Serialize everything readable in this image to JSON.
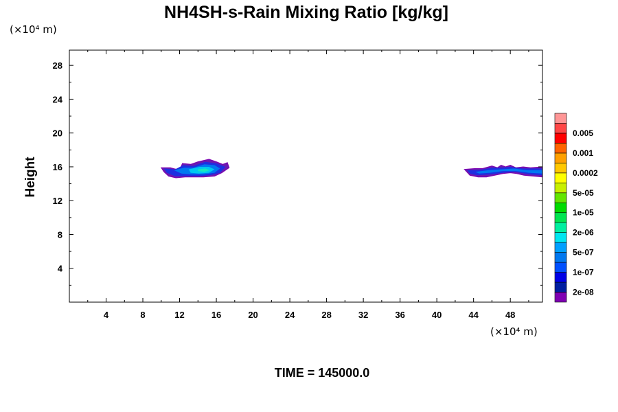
{
  "chart_data": {
    "type": "heatmap",
    "title": "NH4SH-s-Rain Mixing Ratio [kg/kg]",
    "xlabel": "",
    "ylabel": "Height",
    "x_unit": "(×10⁴ m)",
    "y_unit": "(×10⁴ m)",
    "xlim": [
      0,
      51.5
    ],
    "ylim": [
      0,
      29.8
    ],
    "x_ticks": [
      4,
      8,
      12,
      16,
      20,
      24,
      28,
      32,
      36,
      40,
      44,
      48
    ],
    "y_ticks": [
      4,
      8,
      12,
      16,
      20,
      24,
      28
    ],
    "grid": false,
    "colorbar": {
      "colors": [
        "#7f00b2",
        "#001ea0",
        "#0000e6",
        "#0050ff",
        "#0078f0",
        "#00a0ff",
        "#00e6f0",
        "#00f0a0",
        "#00e650",
        "#00dc00",
        "#64e600",
        "#c8f000",
        "#ffff00",
        "#ffc800",
        "#ffa000",
        "#ff6400",
        "#ff0000",
        "#ff4646",
        "#ff9696"
      ],
      "labels": [
        "2e-08",
        "1e-07",
        "5e-07",
        "2e-06",
        "1e-05",
        "5e-05",
        "0.0002",
        "0.001",
        "0.005"
      ]
    },
    "regions": [
      {
        "name": "cloud-left",
        "outline": [
          [
            10.0,
            15.9
          ],
          [
            11.0,
            15.9
          ],
          [
            12.0,
            15.6
          ],
          [
            12.3,
            16.4
          ],
          [
            13.2,
            16.3
          ],
          [
            14.0,
            16.6
          ],
          [
            15.2,
            16.9
          ],
          [
            16.0,
            16.6
          ],
          [
            16.7,
            16.3
          ],
          [
            17.2,
            16.5
          ],
          [
            17.4,
            15.9
          ],
          [
            16.6,
            15.3
          ],
          [
            15.8,
            14.9
          ],
          [
            14.6,
            14.8
          ],
          [
            13.6,
            14.8
          ],
          [
            12.6,
            14.8
          ],
          [
            11.6,
            14.7
          ],
          [
            10.8,
            14.9
          ],
          [
            10.3,
            15.4
          ],
          [
            10.0,
            15.9
          ]
        ],
        "layers": [
          {
            "outline": [
              [
                10.3,
                15.8
              ],
              [
                11.5,
                15.7
              ],
              [
                12.4,
                16.2
              ],
              [
                13.5,
                16.1
              ],
              [
                14.8,
                16.6
              ],
              [
                16.0,
                16.4
              ],
              [
                17.0,
                16.0
              ],
              [
                16.4,
                15.3
              ],
              [
                15.3,
                15.0
              ],
              [
                14.0,
                14.9
              ],
              [
                12.6,
                14.9
              ],
              [
                11.5,
                14.9
              ],
              [
                10.6,
                15.3
              ],
              [
                10.3,
                15.8
              ]
            ],
            "value": 5e-08
          },
          {
            "outline": [
              [
                11.4,
                15.6
              ],
              [
                12.5,
                15.9
              ],
              [
                13.5,
                15.9
              ],
              [
                14.7,
                16.3
              ],
              [
                15.8,
                16.2
              ],
              [
                16.4,
                15.8
              ],
              [
                15.8,
                15.3
              ],
              [
                14.6,
                15.1
              ],
              [
                13.3,
                15.1
              ],
              [
                12.2,
                15.2
              ],
              [
                11.4,
                15.6
              ]
            ],
            "value": 2e-07
          },
          {
            "outline": [
              [
                13.0,
                15.7
              ],
              [
                14.2,
                16.0
              ],
              [
                15.2,
                16.0
              ],
              [
                15.8,
                15.7
              ],
              [
                15.2,
                15.3
              ],
              [
                14.1,
                15.2
              ],
              [
                13.2,
                15.3
              ],
              [
                13.0,
                15.7
              ]
            ],
            "value": 1e-06
          },
          {
            "outline": [
              [
                14.0,
                15.7
              ],
              [
                14.8,
                15.8
              ],
              [
                15.3,
                15.6
              ],
              [
                14.7,
                15.4
              ],
              [
                14.0,
                15.5
              ],
              [
                14.0,
                15.7
              ]
            ],
            "value": 3e-06
          }
        ]
      },
      {
        "name": "cloud-right",
        "outline": [
          [
            43.0,
            15.7
          ],
          [
            44.2,
            15.8
          ],
          [
            45.0,
            15.8
          ],
          [
            46.0,
            16.1
          ],
          [
            46.6,
            15.9
          ],
          [
            47.0,
            16.2
          ],
          [
            47.5,
            16.0
          ],
          [
            48.0,
            16.2
          ],
          [
            48.6,
            15.9
          ],
          [
            49.4,
            16.0
          ],
          [
            50.2,
            15.9
          ],
          [
            51.5,
            16.0
          ],
          [
            51.5,
            14.8
          ],
          [
            50.5,
            14.9
          ],
          [
            49.5,
            15.0
          ],
          [
            48.7,
            15.2
          ],
          [
            48.0,
            15.3
          ],
          [
            47.2,
            15.2
          ],
          [
            46.3,
            15.0
          ],
          [
            45.4,
            14.8
          ],
          [
            44.5,
            14.8
          ],
          [
            43.6,
            15.0
          ],
          [
            43.0,
            15.7
          ]
        ],
        "layers": [
          {
            "outline": [
              [
                43.3,
                15.6
              ],
              [
                44.5,
                15.6
              ],
              [
                46.0,
                15.9
              ],
              [
                47.0,
                15.9
              ],
              [
                48.0,
                16.0
              ],
              [
                49.4,
                15.8
              ],
              [
                51.5,
                15.8
              ],
              [
                51.5,
                15.0
              ],
              [
                50.2,
                15.1
              ],
              [
                48.5,
                15.4
              ],
              [
                47.2,
                15.3
              ],
              [
                45.8,
                15.1
              ],
              [
                44.4,
                15.0
              ],
              [
                43.6,
                15.2
              ],
              [
                43.3,
                15.6
              ]
            ],
            "value": 5e-08
          },
          {
            "outline": [
              [
                44.2,
                15.4
              ],
              [
                45.6,
                15.6
              ],
              [
                47.0,
                15.7
              ],
              [
                48.4,
                15.8
              ],
              [
                49.8,
                15.6
              ],
              [
                51.5,
                15.6
              ],
              [
                51.5,
                15.2
              ],
              [
                50.0,
                15.3
              ],
              [
                48.6,
                15.5
              ],
              [
                47.2,
                15.5
              ],
              [
                45.8,
                15.3
              ],
              [
                44.6,
                15.2
              ],
              [
                44.2,
                15.4
              ]
            ],
            "value": 2e-07
          }
        ]
      }
    ]
  },
  "footer": {
    "time_label": "TIME = 145000.0"
  }
}
